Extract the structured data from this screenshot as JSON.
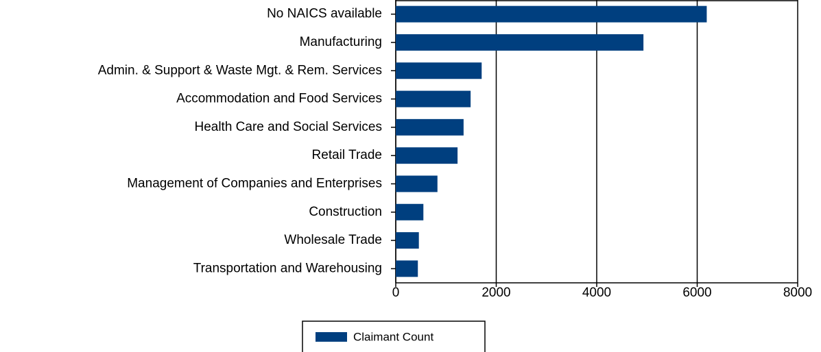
{
  "chart_data": {
    "type": "bar",
    "orientation": "horizontal",
    "categories": [
      "No NAICS available",
      "Manufacturing",
      "Admin. & Support & Waste Mgt. & Rem. Services",
      "Accommodation and Food Services",
      "Health Care and Social Services",
      "Retail Trade",
      "Management of Companies and Enterprises",
      "Construction",
      "Wholesale Trade",
      "Transportation and Warehousing"
    ],
    "series": [
      {
        "name": "Claimant Count",
        "color": "#003f7f",
        "values": [
          6190,
          4930,
          1710,
          1490,
          1350,
          1230,
          830,
          550,
          460,
          440
        ]
      }
    ],
    "xlim": [
      0,
      8000
    ],
    "xticks": [
      0,
      2000,
      4000,
      6000,
      8000
    ],
    "grid": true,
    "legend": "bottom"
  }
}
